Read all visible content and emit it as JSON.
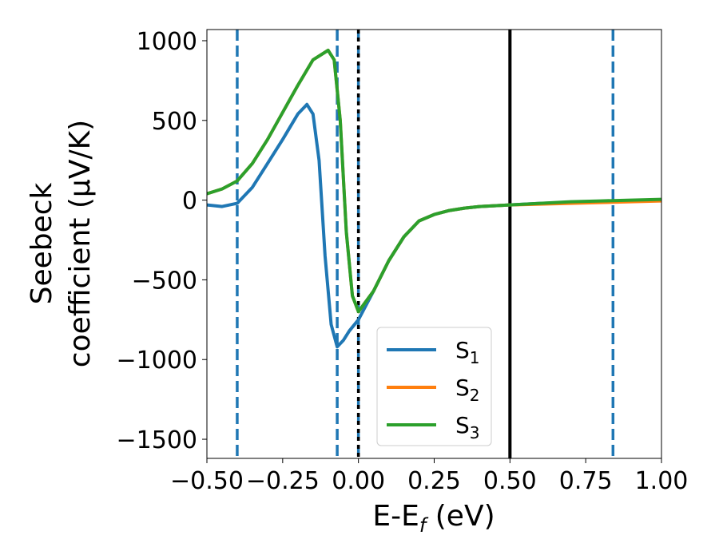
{
  "chart_data": {
    "type": "line",
    "xlabel": "E-E",
    "xlabel_sub": "f",
    "xlabel_unit": " (eV)",
    "ylabel_line1": "Seebeck",
    "ylabel_line2": "coefficient  (μV/K)",
    "xlim": [
      -0.5,
      1.0
    ],
    "ylim": [
      -1620,
      1070
    ],
    "xticks": [
      -0.5,
      -0.25,
      0.0,
      0.25,
      0.5,
      0.75,
      1.0
    ],
    "xtick_labels": [
      "−0.50",
      "−0.25",
      "0.00",
      "0.25",
      "0.50",
      "0.75",
      "1.00"
    ],
    "yticks": [
      -1500,
      -1000,
      -500,
      0,
      500,
      1000
    ],
    "ytick_labels": [
      "−1500",
      "−1000",
      "−500",
      "0",
      "500",
      "1000"
    ],
    "legend_position": "lower-center",
    "vlines": [
      {
        "x": -0.4,
        "style": "dashed",
        "color": "#1f77b4"
      },
      {
        "x": -0.07,
        "style": "dashed",
        "color": "#1f77b4"
      },
      {
        "x": 0.0,
        "style": "dashed",
        "color": "#1f77b4"
      },
      {
        "x": 0.0,
        "style": "dotted",
        "color": "#000000"
      },
      {
        "x": 0.5,
        "style": "solid",
        "color": "#000000"
      },
      {
        "x": 0.84,
        "style": "dashed",
        "color": "#1f77b4"
      }
    ],
    "series": [
      {
        "name": "S",
        "sub": "1",
        "color": "#1f77b4",
        "x": [
          -0.5,
          -0.45,
          -0.4,
          -0.35,
          -0.3,
          -0.25,
          -0.2,
          -0.17,
          -0.15,
          -0.13,
          -0.11,
          -0.09,
          -0.07,
          -0.05,
          -0.03,
          0.0,
          0.05,
          0.1,
          0.15,
          0.2,
          0.25,
          0.3,
          0.35,
          0.4,
          0.5,
          0.6,
          0.7,
          0.8,
          0.9,
          1.0
        ],
        "y": [
          -30,
          -40,
          -20,
          80,
          230,
          380,
          540,
          600,
          540,
          250,
          -350,
          -780,
          -920,
          -880,
          -820,
          -750,
          -570,
          -380,
          -230,
          -130,
          -90,
          -65,
          -50,
          -40,
          -30,
          -20,
          -15,
          -10,
          -5,
          0
        ]
      },
      {
        "name": "S",
        "sub": "2",
        "color": "#ff7f0e",
        "x": [
          -0.5,
          -0.45,
          -0.4,
          -0.35,
          -0.3,
          -0.25,
          -0.2,
          -0.15,
          -0.1,
          -0.08,
          -0.06,
          -0.04,
          -0.02,
          0.0,
          0.05,
          0.1,
          0.15,
          0.2,
          0.25,
          0.3,
          0.35,
          0.4,
          0.5,
          0.6,
          0.7,
          0.8,
          0.9,
          1.0
        ],
        "y": [
          40,
          70,
          120,
          230,
          380,
          550,
          720,
          880,
          940,
          880,
          500,
          -200,
          -600,
          -700,
          -570,
          -380,
          -230,
          -130,
          -90,
          -65,
          -50,
          -40,
          -30,
          -25,
          -20,
          -15,
          -10,
          -5
        ]
      },
      {
        "name": "S",
        "sub": "3",
        "color": "#2ca02c",
        "x": [
          -0.5,
          -0.45,
          -0.4,
          -0.35,
          -0.3,
          -0.25,
          -0.2,
          -0.15,
          -0.1,
          -0.08,
          -0.06,
          -0.04,
          -0.02,
          0.0,
          0.05,
          0.1,
          0.15,
          0.2,
          0.25,
          0.3,
          0.35,
          0.4,
          0.5,
          0.6,
          0.7,
          0.8,
          0.9,
          1.0
        ],
        "y": [
          40,
          70,
          120,
          230,
          380,
          550,
          720,
          880,
          940,
          880,
          500,
          -200,
          -600,
          -700,
          -570,
          -380,
          -230,
          -130,
          -90,
          -65,
          -50,
          -40,
          -30,
          -20,
          -10,
          -5,
          0,
          5
        ]
      }
    ]
  }
}
